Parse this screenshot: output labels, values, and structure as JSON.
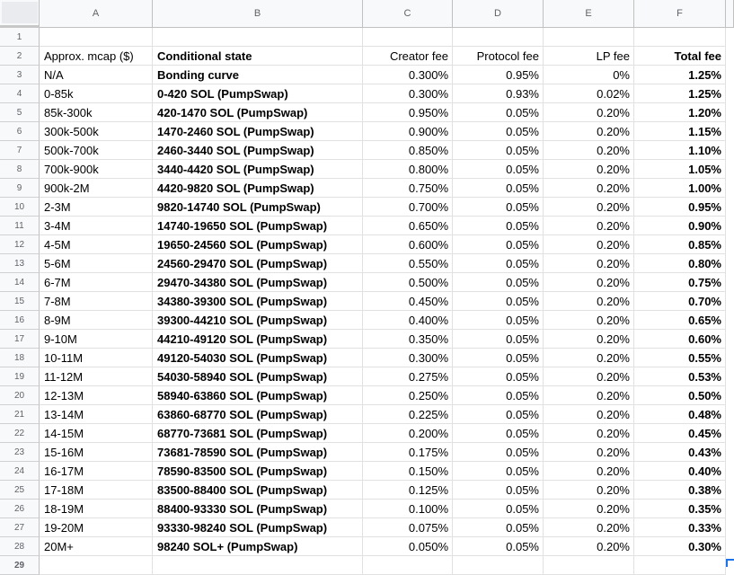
{
  "columns": [
    "A",
    "B",
    "C",
    "D",
    "E",
    "F"
  ],
  "row_numbers": [
    "1",
    "2",
    "3",
    "4",
    "5",
    "6",
    "7",
    "8",
    "9",
    "10",
    "11",
    "12",
    "13",
    "14",
    "15",
    "16",
    "17",
    "18",
    "19",
    "20",
    "21",
    "22",
    "23",
    "24",
    "25",
    "26",
    "27",
    "28",
    "29"
  ],
  "header": {
    "mcap": "Approx. mcap ($)",
    "state": "Conditional state",
    "creator": "Creator fee",
    "protocol": "Protocol fee",
    "lp": "LP fee",
    "total": "Total fee"
  },
  "rows": [
    {
      "mcap": "N/A",
      "state": "Bonding curve",
      "creator": "0.300%",
      "protocol": "0.95%",
      "lp": "0%",
      "total": "1.25%"
    },
    {
      "mcap": "0-85k",
      "state": "0-420 SOL (PumpSwap)",
      "creator": "0.300%",
      "protocol": "0.93%",
      "lp": "0.02%",
      "total": "1.25%"
    },
    {
      "mcap": "85k-300k",
      "state": "420-1470 SOL (PumpSwap)",
      "creator": "0.950%",
      "protocol": "0.05%",
      "lp": "0.20%",
      "total": "1.20%"
    },
    {
      "mcap": "300k-500k",
      "state": "1470-2460 SOL  (PumpSwap)",
      "creator": "0.900%",
      "protocol": "0.05%",
      "lp": "0.20%",
      "total": "1.15%"
    },
    {
      "mcap": "500k-700k",
      "state": "2460-3440 SOL  (PumpSwap)",
      "creator": "0.850%",
      "protocol": "0.05%",
      "lp": "0.20%",
      "total": "1.10%"
    },
    {
      "mcap": "700k-900k",
      "state": "3440-4420 SOL  (PumpSwap)",
      "creator": "0.800%",
      "protocol": "0.05%",
      "lp": "0.20%",
      "total": "1.05%"
    },
    {
      "mcap": "900k-2M",
      "state": "4420-9820 SOL  (PumpSwap)",
      "creator": "0.750%",
      "protocol": "0.05%",
      "lp": "0.20%",
      "total": "1.00%"
    },
    {
      "mcap": "2-3M",
      "state": "9820-14740 SOL  (PumpSwap)",
      "creator": "0.700%",
      "protocol": "0.05%",
      "lp": "0.20%",
      "total": "0.95%"
    },
    {
      "mcap": "3-4M",
      "state": "14740-19650 SOL  (PumpSwap)",
      "creator": "0.650%",
      "protocol": "0.05%",
      "lp": "0.20%",
      "total": "0.90%"
    },
    {
      "mcap": "4-5M",
      "state": "19650-24560 SOL  (PumpSwap)",
      "creator": "0.600%",
      "protocol": "0.05%",
      "lp": "0.20%",
      "total": "0.85%"
    },
    {
      "mcap": "5-6M",
      "state": "24560-29470 SOL  (PumpSwap)",
      "creator": "0.550%",
      "protocol": "0.05%",
      "lp": "0.20%",
      "total": "0.80%"
    },
    {
      "mcap": "6-7M",
      "state": "29470-34380 SOL  (PumpSwap)",
      "creator": "0.500%",
      "protocol": "0.05%",
      "lp": "0.20%",
      "total": "0.75%"
    },
    {
      "mcap": "7-8M",
      "state": "34380-39300 SOL  (PumpSwap)",
      "creator": "0.450%",
      "protocol": "0.05%",
      "lp": "0.20%",
      "total": "0.70%"
    },
    {
      "mcap": "8-9M",
      "state": "39300-44210 SOL  (PumpSwap)",
      "creator": "0.400%",
      "protocol": "0.05%",
      "lp": "0.20%",
      "total": "0.65%"
    },
    {
      "mcap": "9-10M",
      "state": "44210-49120 SOL  (PumpSwap)",
      "creator": "0.350%",
      "protocol": "0.05%",
      "lp": "0.20%",
      "total": "0.60%"
    },
    {
      "mcap": "10-11M",
      "state": "49120-54030 SOL  (PumpSwap)",
      "creator": "0.300%",
      "protocol": "0.05%",
      "lp": "0.20%",
      "total": "0.55%"
    },
    {
      "mcap": "11-12M",
      "state": "54030-58940 SOL  (PumpSwap)",
      "creator": "0.275%",
      "protocol": "0.05%",
      "lp": "0.20%",
      "total": "0.53%"
    },
    {
      "mcap": "12-13M",
      "state": "58940-63860 SOL  (PumpSwap)",
      "creator": "0.250%",
      "protocol": "0.05%",
      "lp": "0.20%",
      "total": "0.50%"
    },
    {
      "mcap": "13-14M",
      "state": "63860-68770 SOL  (PumpSwap)",
      "creator": "0.225%",
      "protocol": "0.05%",
      "lp": "0.20%",
      "total": "0.48%"
    },
    {
      "mcap": "14-15M",
      "state": "68770-73681 SOL  (PumpSwap)",
      "creator": "0.200%",
      "protocol": "0.05%",
      "lp": "0.20%",
      "total": "0.45%"
    },
    {
      "mcap": "15-16M",
      "state": "73681-78590 SOL  (PumpSwap)",
      "creator": "0.175%",
      "protocol": "0.05%",
      "lp": "0.20%",
      "total": "0.43%"
    },
    {
      "mcap": "16-17M",
      "state": "78590-83500 SOL  (PumpSwap)",
      "creator": "0.150%",
      "protocol": "0.05%",
      "lp": "0.20%",
      "total": "0.40%"
    },
    {
      "mcap": "17-18M",
      "state": "83500-88400 SOL  (PumpSwap)",
      "creator": "0.125%",
      "protocol": "0.05%",
      "lp": "0.20%",
      "total": "0.38%"
    },
    {
      "mcap": "18-19M",
      "state": "88400-93330 SOL  (PumpSwap)",
      "creator": "0.100%",
      "protocol": "0.05%",
      "lp": "0.20%",
      "total": "0.35%"
    },
    {
      "mcap": "19-20M",
      "state": "93330-98240 SOL  (PumpSwap)",
      "creator": "0.075%",
      "protocol": "0.05%",
      "lp": "0.20%",
      "total": "0.33%"
    },
    {
      "mcap": "20M+",
      "state": "98240 SOL+  (PumpSwap)",
      "creator": "0.050%",
      "protocol": "0.05%",
      "lp": "0.20%",
      "total": "0.30%"
    }
  ]
}
